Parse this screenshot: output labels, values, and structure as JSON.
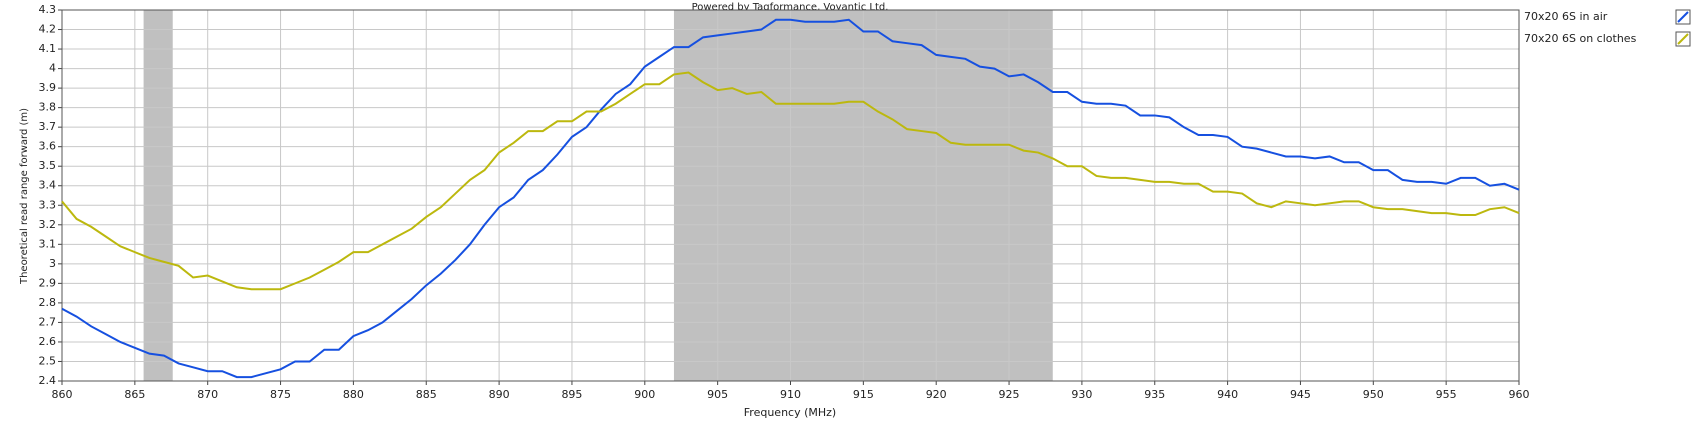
{
  "chart_data": {
    "type": "line",
    "title": "Powered by Tagformance, Voyantic Ltd.",
    "x_label": "Frequency (MHz)",
    "y_label": "Theoretical read range forward (m)",
    "x": [
      860,
      861,
      862,
      863,
      864,
      865,
      866,
      867,
      868,
      869,
      870,
      871,
      872,
      873,
      874,
      875,
      876,
      877,
      878,
      879,
      880,
      881,
      882,
      883,
      884,
      885,
      886,
      887,
      888,
      889,
      890,
      891,
      892,
      893,
      894,
      895,
      896,
      897,
      898,
      899,
      900,
      901,
      902,
      903,
      904,
      905,
      906,
      907,
      908,
      909,
      910,
      911,
      912,
      913,
      914,
      915,
      916,
      917,
      918,
      919,
      920,
      921,
      922,
      923,
      924,
      925,
      926,
      927,
      928,
      929,
      930,
      931,
      932,
      933,
      934,
      935,
      936,
      937,
      938,
      939,
      940,
      941,
      942,
      943,
      944,
      945,
      946,
      947,
      948,
      949,
      950,
      951,
      952,
      953,
      954,
      955,
      956,
      957,
      958,
      959,
      960
    ],
    "series": [
      {
        "name": "70x20 6S in air",
        "color": "#1650e0",
        "values": [
          2.77,
          2.73,
          2.68,
          2.64,
          2.6,
          2.57,
          2.54,
          2.53,
          2.49,
          2.47,
          2.45,
          2.45,
          2.42,
          2.42,
          2.44,
          2.46,
          2.5,
          2.5,
          2.56,
          2.56,
          2.63,
          2.66,
          2.7,
          2.76,
          2.82,
          2.89,
          2.95,
          3.02,
          3.1,
          3.2,
          3.29,
          3.34,
          3.43,
          3.48,
          3.56,
          3.65,
          3.7,
          3.79,
          3.87,
          3.92,
          4.01,
          4.06,
          4.11,
          4.11,
          4.16,
          4.17,
          4.18,
          4.19,
          4.2,
          4.25,
          4.25,
          4.24,
          4.24,
          4.24,
          4.25,
          4.19,
          4.19,
          4.14,
          4.13,
          4.12,
          4.07,
          4.06,
          4.05,
          4.01,
          4.0,
          3.96,
          3.97,
          3.93,
          3.88,
          3.88,
          3.83,
          3.82,
          3.82,
          3.81,
          3.76,
          3.76,
          3.75,
          3.7,
          3.66,
          3.66,
          3.65,
          3.6,
          3.59,
          3.57,
          3.55,
          3.55,
          3.54,
          3.55,
          3.52,
          3.52,
          3.48,
          3.48,
          3.43,
          3.42,
          3.42,
          3.41,
          3.44,
          3.44,
          3.4,
          3.41,
          3.38
        ]
      },
      {
        "name": "70x20 6S on clothes",
        "color": "#bcb80e",
        "values": [
          3.32,
          3.23,
          3.19,
          3.14,
          3.09,
          3.06,
          3.03,
          3.01,
          2.99,
          2.93,
          2.94,
          2.91,
          2.88,
          2.87,
          2.87,
          2.87,
          2.9,
          2.93,
          2.97,
          3.01,
          3.06,
          3.06,
          3.1,
          3.14,
          3.18,
          3.24,
          3.29,
          3.36,
          3.43,
          3.48,
          3.57,
          3.62,
          3.68,
          3.68,
          3.73,
          3.73,
          3.78,
          3.78,
          3.82,
          3.87,
          3.92,
          3.92,
          3.97,
          3.98,
          3.93,
          3.89,
          3.9,
          3.87,
          3.88,
          3.82,
          3.82,
          3.82,
          3.82,
          3.82,
          3.83,
          3.83,
          3.78,
          3.74,
          3.69,
          3.68,
          3.67,
          3.62,
          3.61,
          3.61,
          3.61,
          3.61,
          3.58,
          3.57,
          3.54,
          3.5,
          3.5,
          3.45,
          3.44,
          3.44,
          3.43,
          3.42,
          3.42,
          3.41,
          3.41,
          3.37,
          3.37,
          3.36,
          3.31,
          3.29,
          3.32,
          3.31,
          3.3,
          3.31,
          3.32,
          3.32,
          3.29,
          3.28,
          3.28,
          3.27,
          3.26,
          3.26,
          3.25,
          3.25,
          3.28,
          3.29,
          3.26
        ]
      }
    ],
    "shaded_regions": [
      [
        865.6,
        867.6
      ],
      [
        902,
        928
      ]
    ],
    "shade_color": "#c0c0c0",
    "xlim": [
      860,
      960
    ],
    "xticks": [
      860,
      865,
      870,
      875,
      880,
      885,
      890,
      895,
      900,
      905,
      910,
      915,
      920,
      925,
      930,
      935,
      940,
      945,
      950,
      955,
      960
    ],
    "ylim": [
      2.4,
      4.3
    ],
    "yticks": [
      2.4,
      2.5,
      2.6,
      2.7,
      2.8,
      2.9,
      3,
      3.1,
      3.2,
      3.3,
      3.4,
      3.5,
      3.6,
      3.7,
      3.8,
      3.9,
      4,
      4.1,
      4.2,
      4.3
    ],
    "grid": true,
    "legend": "right"
  }
}
